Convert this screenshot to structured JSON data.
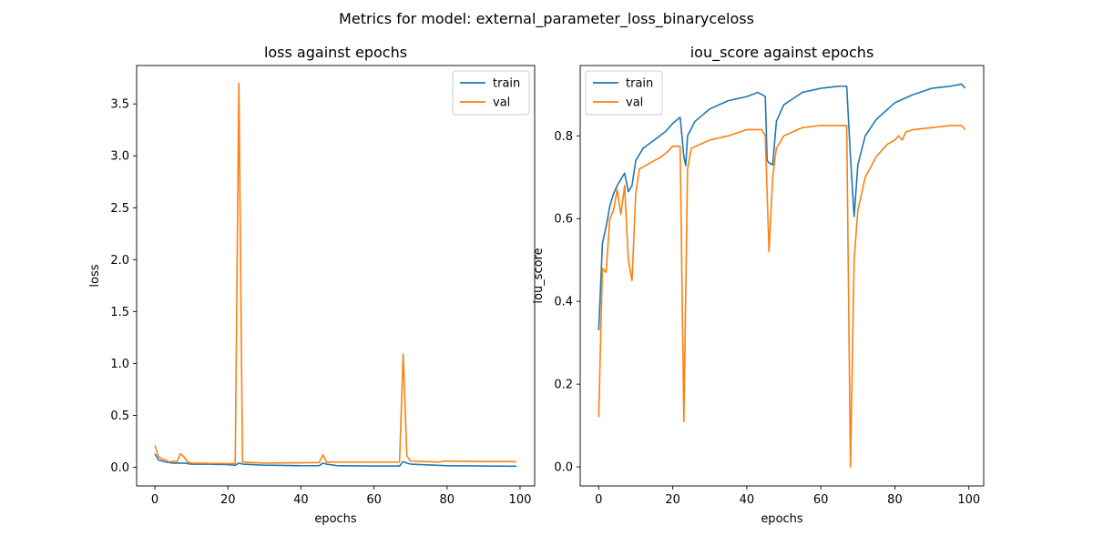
{
  "suptitle": "Metrics for model: external_parameter_loss_binaryceloss",
  "colors": {
    "train": "#1f77b4",
    "val": "#ff7f0e"
  },
  "chart_data": [
    {
      "type": "line",
      "title": "loss against epochs",
      "xlabel": "epochs",
      "ylabel": "loss",
      "xlim": [
        -5,
        104
      ],
      "ylim": [
        -0.18,
        3.87
      ],
      "xticks": [
        0,
        20,
        40,
        60,
        80,
        100
      ],
      "yticks": [
        0.0,
        0.5,
        1.0,
        1.5,
        2.0,
        2.5,
        3.0,
        3.5
      ],
      "grid": false,
      "legend": "upper right",
      "series": [
        {
          "name": "train",
          "keypoints": [
            [
              0,
              0.13
            ],
            [
              1,
              0.07
            ],
            [
              2,
              0.06
            ],
            [
              3,
              0.05
            ],
            [
              5,
              0.04
            ],
            [
              7,
              0.04
            ],
            [
              8,
              0.04
            ],
            [
              10,
              0.03
            ],
            [
              15,
              0.03
            ],
            [
              20,
              0.025
            ],
            [
              22,
              0.02
            ],
            [
              23,
              0.04
            ],
            [
              24,
              0.03
            ],
            [
              30,
              0.02
            ],
            [
              40,
              0.015
            ],
            [
              45,
              0.015
            ],
            [
              46,
              0.04
            ],
            [
              47,
              0.03
            ],
            [
              50,
              0.015
            ],
            [
              60,
              0.012
            ],
            [
              67,
              0.012
            ],
            [
              68,
              0.055
            ],
            [
              69,
              0.04
            ],
            [
              70,
              0.03
            ],
            [
              80,
              0.015
            ],
            [
              99,
              0.01
            ]
          ]
        },
        {
          "name": "val",
          "keypoints": [
            [
              0,
              0.21
            ],
            [
              1,
              0.1
            ],
            [
              2,
              0.08
            ],
            [
              3,
              0.07
            ],
            [
              4,
              0.05
            ],
            [
              5,
              0.06
            ],
            [
              6,
              0.05
            ],
            [
              7,
              0.13
            ],
            [
              8,
              0.1
            ],
            [
              9,
              0.05
            ],
            [
              10,
              0.04
            ],
            [
              20,
              0.035
            ],
            [
              22,
              0.035
            ],
            [
              23,
              3.7
            ],
            [
              24,
              0.05
            ],
            [
              30,
              0.04
            ],
            [
              45,
              0.045
            ],
            [
              46,
              0.12
            ],
            [
              47,
              0.05
            ],
            [
              60,
              0.05
            ],
            [
              67,
              0.05
            ],
            [
              68,
              1.09
            ],
            [
              69,
              0.11
            ],
            [
              70,
              0.06
            ],
            [
              78,
              0.05
            ],
            [
              79,
              0.06
            ],
            [
              90,
              0.055
            ],
            [
              98,
              0.055
            ],
            [
              99,
              0.05
            ]
          ]
        }
      ]
    },
    {
      "type": "line",
      "title": "iou_score against epochs",
      "xlabel": "epochs",
      "ylabel": "iou_score",
      "xlim": [
        -5,
        104
      ],
      "ylim": [
        -0.046,
        0.97
      ],
      "xticks": [
        0,
        20,
        40,
        60,
        80,
        100
      ],
      "yticks": [
        0.0,
        0.2,
        0.4,
        0.6,
        0.8
      ],
      "grid": false,
      "legend": "upper left",
      "series": [
        {
          "name": "train",
          "keypoints": [
            [
              0,
              0.33
            ],
            [
              1,
              0.54
            ],
            [
              2,
              0.58
            ],
            [
              3,
              0.63
            ],
            [
              4,
              0.66
            ],
            [
              5,
              0.68
            ],
            [
              6,
              0.695
            ],
            [
              7,
              0.71
            ],
            [
              8,
              0.665
            ],
            [
              9,
              0.68
            ],
            [
              10,
              0.74
            ],
            [
              12,
              0.77
            ],
            [
              15,
              0.79
            ],
            [
              18,
              0.81
            ],
            [
              20,
              0.83
            ],
            [
              22,
              0.845
            ],
            [
              23,
              0.75
            ],
            [
              23.5,
              0.728
            ],
            [
              24,
              0.8
            ],
            [
              26,
              0.835
            ],
            [
              30,
              0.865
            ],
            [
              35,
              0.885
            ],
            [
              40,
              0.895
            ],
            [
              43,
              0.905
            ],
            [
              44,
              0.9
            ],
            [
              45,
              0.895
            ],
            [
              45.5,
              0.74
            ],
            [
              46,
              0.735
            ],
            [
              47,
              0.73
            ],
            [
              48,
              0.835
            ],
            [
              50,
              0.875
            ],
            [
              55,
              0.905
            ],
            [
              60,
              0.915
            ],
            [
              65,
              0.92
            ],
            [
              67,
              0.92
            ],
            [
              68,
              0.75
            ],
            [
              69,
              0.605
            ],
            [
              70,
              0.73
            ],
            [
              72,
              0.8
            ],
            [
              75,
              0.84
            ],
            [
              80,
              0.88
            ],
            [
              85,
              0.9
            ],
            [
              90,
              0.915
            ],
            [
              95,
              0.92
            ],
            [
              98,
              0.925
            ],
            [
              99,
              0.915
            ]
          ]
        },
        {
          "name": "val",
          "keypoints": [
            [
              0,
              0.12
            ],
            [
              1,
              0.48
            ],
            [
              2,
              0.47
            ],
            [
              3,
              0.6
            ],
            [
              4,
              0.62
            ],
            [
              5,
              0.67
            ],
            [
              6,
              0.61
            ],
            [
              7,
              0.68
            ],
            [
              8,
              0.5
            ],
            [
              9,
              0.45
            ],
            [
              10,
              0.66
            ],
            [
              11,
              0.72
            ],
            [
              13,
              0.73
            ],
            [
              15,
              0.74
            ],
            [
              17,
              0.75
            ],
            [
              19,
              0.765
            ],
            [
              20,
              0.775
            ],
            [
              22,
              0.775
            ],
            [
              23,
              0.11
            ],
            [
              24,
              0.72
            ],
            [
              25,
              0.77
            ],
            [
              30,
              0.79
            ],
            [
              35,
              0.8
            ],
            [
              40,
              0.815
            ],
            [
              44,
              0.815
            ],
            [
              45,
              0.8
            ],
            [
              46,
              0.52
            ],
            [
              47,
              0.7
            ],
            [
              48,
              0.77
            ],
            [
              50,
              0.8
            ],
            [
              55,
              0.82
            ],
            [
              60,
              0.825
            ],
            [
              65,
              0.825
            ],
            [
              67,
              0.825
            ],
            [
              68,
              0.0
            ],
            [
              69,
              0.5
            ],
            [
              70,
              0.62
            ],
            [
              72,
              0.7
            ],
            [
              75,
              0.75
            ],
            [
              78,
              0.78
            ],
            [
              80,
              0.79
            ],
            [
              81,
              0.8
            ],
            [
              82,
              0.79
            ],
            [
              83,
              0.81
            ],
            [
              85,
              0.815
            ],
            [
              90,
              0.82
            ],
            [
              95,
              0.825
            ],
            [
              98,
              0.825
            ],
            [
              99,
              0.815
            ]
          ]
        }
      ]
    }
  ]
}
